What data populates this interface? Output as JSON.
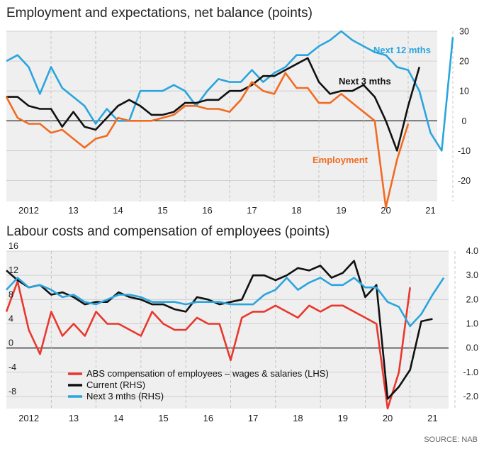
{
  "chart_data": [
    {
      "type": "line",
      "title": "Employment and expectations, net balance (points)",
      "ylim": [
        -27,
        30
      ],
      "yticks": [
        30,
        20,
        10,
        0,
        -10,
        -20
      ],
      "xticks": [
        "2012",
        "13",
        "14",
        "15",
        "16",
        "17",
        "18",
        "19",
        "20",
        "21"
      ],
      "series": [
        {
          "name": "Next 12 mths",
          "color": "#2aa5de",
          "x": [
            2011.5,
            2011.75,
            2012.0,
            2012.25,
            2012.5,
            2012.75,
            2013.0,
            2013.25,
            2013.5,
            2013.75,
            2014.0,
            2014.25,
            2014.5,
            2014.75,
            2015.0,
            2015.25,
            2015.5,
            2015.75,
            2016.0,
            2016.25,
            2016.5,
            2016.75,
            2017.0,
            2017.25,
            2017.5,
            2017.75,
            2018.0,
            2018.25,
            2018.5,
            2018.75,
            2019.0,
            2019.25,
            2019.5,
            2019.75,
            2020.0,
            2020.25,
            2020.5,
            2020.75,
            2021.0,
            2021.25,
            2021.5
          ],
          "values": [
            20,
            22,
            18,
            9,
            18,
            11,
            8,
            5,
            -1,
            4,
            0,
            0,
            10,
            10,
            10,
            12,
            10,
            5,
            10,
            14,
            13,
            13,
            17,
            13,
            16,
            18,
            22,
            22,
            25,
            27,
            30,
            27,
            25,
            23,
            22,
            18,
            17,
            10,
            -4,
            -10,
            28
          ]
        },
        {
          "name": "Next 3 mths",
          "color": "#111111",
          "x": [
            2011.5,
            2011.75,
            2012.0,
            2012.25,
            2012.5,
            2012.75,
            2013.0,
            2013.25,
            2013.5,
            2013.75,
            2014.0,
            2014.25,
            2014.5,
            2014.75,
            2015.0,
            2015.25,
            2015.5,
            2015.75,
            2016.0,
            2016.25,
            2016.5,
            2016.75,
            2017.0,
            2017.25,
            2017.5,
            2017.75,
            2018.0,
            2018.25,
            2018.5,
            2018.75,
            2019.0,
            2019.25,
            2019.5,
            2019.75,
            2020.0,
            2020.25,
            2020.5,
            2020.75
          ],
          "values": [
            8,
            8,
            5,
            4,
            4,
            -2,
            3,
            -2,
            -3,
            1,
            5,
            7,
            5,
            2,
            2,
            3,
            6,
            6,
            7,
            7,
            10,
            10,
            12,
            15,
            15,
            17,
            19,
            21,
            13,
            9,
            10,
            10,
            12,
            8,
            0,
            -10,
            5,
            18
          ]
        },
        {
          "name": "Employment",
          "color": "#f26b21",
          "x": [
            2011.5,
            2011.75,
            2012.0,
            2012.25,
            2012.5,
            2012.75,
            2013.0,
            2013.25,
            2013.5,
            2013.75,
            2014.0,
            2014.25,
            2014.5,
            2014.75,
            2015.0,
            2015.25,
            2015.5,
            2015.75,
            2016.0,
            2016.25,
            2016.5,
            2016.75,
            2017.0,
            2017.25,
            2017.5,
            2017.75,
            2018.0,
            2018.25,
            2018.5,
            2018.75,
            2019.0,
            2019.25,
            2019.5,
            2019.75,
            2020.0,
            2020.25,
            2020.5
          ],
          "values": [
            8,
            1,
            -1,
            -1,
            -4,
            -3,
            -6,
            -9,
            -6,
            -5,
            1,
            0,
            0,
            0,
            1,
            2,
            5,
            5,
            4,
            4,
            3,
            7,
            13,
            10,
            9,
            16,
            11,
            11,
            6,
            6,
            9,
            6,
            3,
            0,
            -29,
            -13,
            -1
          ]
        }
      ],
      "labels": {
        "next12": "Next 12 mths",
        "next3": "Next 3 mths",
        "employment": "Employment"
      }
    },
    {
      "type": "line",
      "title": "Labour costs and compensation of employees (points)",
      "ylim_lhs": [
        -10,
        16
      ],
      "ylim_rhs": [
        -2.5,
        4.0
      ],
      "yticks_lhs": [
        "16",
        "12",
        "8",
        "4",
        "0",
        "-4",
        "-8"
      ],
      "yticks_rhs": [
        "4.0",
        "3.0",
        "2.0",
        "1.0",
        "0.0",
        "-1.0",
        "-2.0"
      ],
      "xticks": [
        "2012",
        "13",
        "14",
        "15",
        "16",
        "17",
        "18",
        "19",
        "20",
        "21"
      ],
      "series": [
        {
          "name": "ABS compensation of employees – wages & salaries (LHS)",
          "axis": "LHS",
          "color": "#e8382e",
          "x": [
            2011.5,
            2011.75,
            2012.0,
            2012.25,
            2012.5,
            2012.75,
            2013.0,
            2013.25,
            2013.5,
            2013.75,
            2014.0,
            2014.25,
            2014.5,
            2014.75,
            2015.0,
            2015.25,
            2015.5,
            2015.75,
            2016.0,
            2016.25,
            2016.5,
            2016.75,
            2017.0,
            2017.25,
            2017.5,
            2017.75,
            2018.0,
            2018.25,
            2018.5,
            2018.75,
            2019.0,
            2019.25,
            2019.5,
            2019.75,
            2020.0,
            2020.25,
            2020.5
          ],
          "values": [
            6,
            11,
            3,
            -1,
            6,
            2,
            4,
            2,
            6,
            4,
            4,
            3,
            2,
            6,
            4,
            3,
            3,
            5,
            4,
            4,
            -2,
            5,
            6,
            6,
            7,
            6,
            5,
            7,
            6,
            7,
            7,
            6,
            5,
            4,
            -10,
            -4,
            10
          ]
        },
        {
          "name": "Current (RHS)",
          "axis": "RHS",
          "color": "#111111",
          "x": [
            2011.5,
            2011.75,
            2012.0,
            2012.25,
            2012.5,
            2012.75,
            2013.0,
            2013.25,
            2013.5,
            2013.75,
            2014.0,
            2014.25,
            2014.5,
            2014.75,
            2015.0,
            2015.25,
            2015.5,
            2015.75,
            2016.0,
            2016.25,
            2016.5,
            2016.75,
            2017.0,
            2017.25,
            2017.5,
            2017.75,
            2018.0,
            2018.25,
            2018.5,
            2018.75,
            2019.0,
            2019.25,
            2019.5,
            2019.75,
            2020.0,
            2020.25,
            2020.5,
            2020.75,
            2021.0
          ],
          "values": [
            3.2,
            2.8,
            2.5,
            2.6,
            2.2,
            2.3,
            2.1,
            1.8,
            1.9,
            1.9,
            2.3,
            2.1,
            2.0,
            1.8,
            1.8,
            1.6,
            1.5,
            2.1,
            2.0,
            1.8,
            1.9,
            2.0,
            3.0,
            3.0,
            2.8,
            3.0,
            3.3,
            3.2,
            3.4,
            2.9,
            3.1,
            3.6,
            2.1,
            2.6,
            -2.1,
            -1.6,
            -0.9,
            1.1,
            1.2
          ]
        },
        {
          "name": "Next 3 mths (RHS)",
          "axis": "RHS",
          "color": "#2aa5de",
          "x": [
            2011.5,
            2011.75,
            2012.0,
            2012.25,
            2012.5,
            2012.75,
            2013.0,
            2013.25,
            2013.5,
            2013.75,
            2014.0,
            2014.25,
            2014.5,
            2014.75,
            2015.0,
            2015.25,
            2015.5,
            2015.75,
            2016.0,
            2016.25,
            2016.5,
            2016.75,
            2017.0,
            2017.25,
            2017.5,
            2017.75,
            2018.0,
            2018.25,
            2018.5,
            2018.75,
            2019.0,
            2019.25,
            2019.5,
            2019.75,
            2020.0,
            2020.25,
            2020.5,
            2020.75,
            2021.0,
            2021.25
          ],
          "values": [
            2.4,
            2.9,
            2.5,
            2.6,
            2.4,
            2.1,
            2.2,
            1.9,
            1.8,
            2.0,
            2.2,
            2.2,
            2.1,
            1.9,
            1.9,
            1.9,
            1.8,
            1.9,
            1.9,
            1.9,
            1.8,
            1.8,
            1.8,
            2.2,
            2.4,
            2.9,
            2.4,
            2.7,
            2.9,
            2.6,
            2.6,
            2.9,
            2.5,
            2.5,
            1.9,
            1.7,
            0.9,
            1.4,
            2.2,
            2.9
          ]
        }
      ]
    }
  ],
  "source": "SOURCE: NAB"
}
